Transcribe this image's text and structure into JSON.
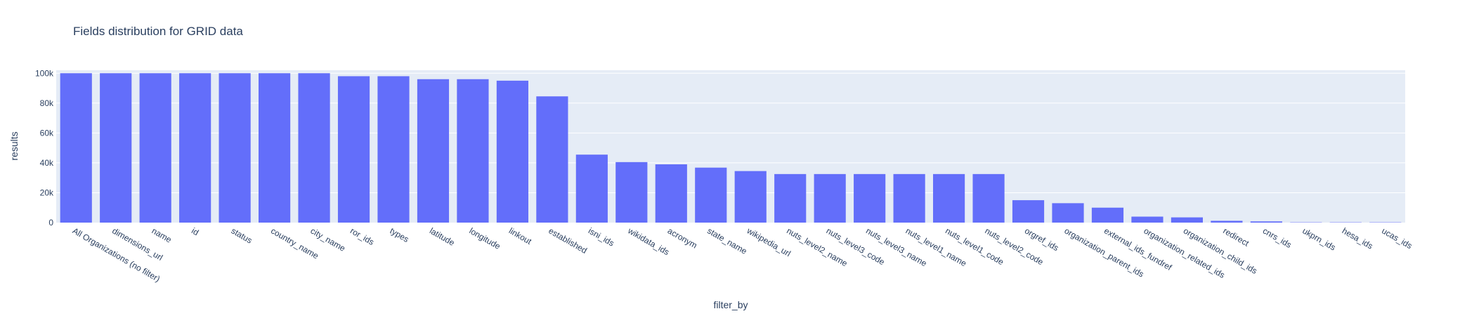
{
  "chart_data": {
    "type": "bar",
    "title": "Fields distribution for GRID data",
    "xlabel": "filter_by",
    "ylabel": "results",
    "ylim": [
      0,
      102000
    ],
    "yticks": [
      0,
      20000,
      40000,
      60000,
      80000,
      100000
    ],
    "ytick_labels": [
      "0",
      "20k",
      "40k",
      "60k",
      "80k",
      "100k"
    ],
    "grid": true,
    "bar_color": "#636efa",
    "plot_bg": "#e5ecf6",
    "text_color": "#2a3f5f",
    "categories": [
      "All Organizations (no filter)",
      "dimensions_url",
      "name",
      "id",
      "status",
      "country_name",
      "city_name",
      "ror_ids",
      "types",
      "latitude",
      "longitude",
      "linkout",
      "established",
      "isni_ids",
      "wikidata_ids",
      "acronym",
      "state_name",
      "wikipedia_url",
      "nuts_level2_name",
      "nuts_level3_code",
      "nuts_level3_name",
      "nuts_level1_name",
      "nuts_level1_code",
      "nuts_level2_code",
      "orgref_ids",
      "organization_parent_ids",
      "external_ids_fundref",
      "organization_related_ids",
      "organization_child_ids",
      "redirect",
      "cnrs_ids",
      "ukprn_ids",
      "hesa_ids",
      "ucas_ids"
    ],
    "values": [
      100000,
      100000,
      100000,
      100000,
      100000,
      100000,
      100000,
      98000,
      98000,
      96000,
      96000,
      95000,
      84500,
      45500,
      40500,
      39000,
      36800,
      34500,
      32500,
      32500,
      32500,
      32500,
      32500,
      32500,
      15000,
      13000,
      10000,
      4000,
      3500,
      1200,
      800,
      200,
      200,
      200
    ]
  }
}
